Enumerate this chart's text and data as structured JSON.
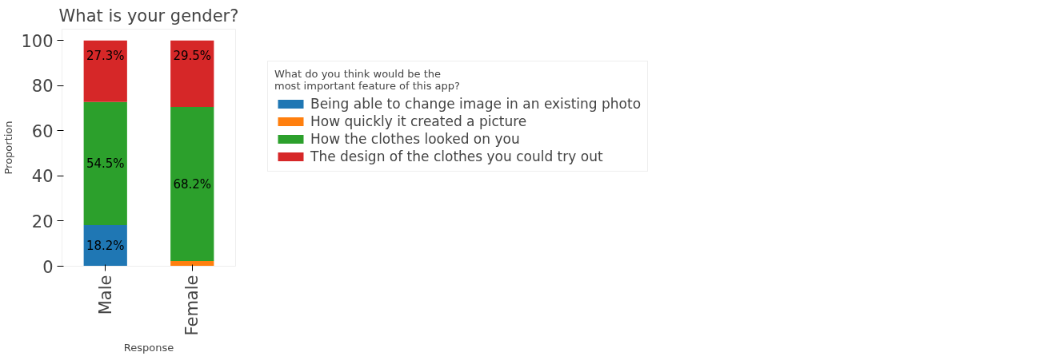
{
  "chart_data": {
    "type": "bar",
    "title": "What is your gender?",
    "xlabel": "Response",
    "ylabel": "Proportion",
    "categories": [
      "Male",
      "Female"
    ],
    "stacked": true,
    "legend_title": "What do you think would be the\nmost important feature of this app?",
    "legend": "right",
    "series": [
      {
        "name": "Being able to change image in an existing photo",
        "color": "#1f77b4",
        "values": [
          18.2,
          0
        ],
        "value_labels": [
          "18.2%",
          null
        ]
      },
      {
        "name": "How quickly it created a picture",
        "color": "#ff7f0e",
        "values": [
          0,
          2.3
        ],
        "value_labels": [
          null,
          null
        ]
      },
      {
        "name": "How the clothes looked on you",
        "color": "#2ca02c",
        "values": [
          54.5,
          68.2
        ],
        "value_labels": [
          "54.5%",
          "68.2%"
        ]
      },
      {
        "name": "The design of the clothes you could try out",
        "color": "#d62728",
        "values": [
          27.3,
          29.5
        ],
        "value_labels": [
          "27.3%",
          "29.5%"
        ]
      }
    ],
    "ylim": [
      0,
      105
    ],
    "yticks": [
      0,
      20,
      40,
      60,
      80,
      100
    ],
    "grid": false
  }
}
